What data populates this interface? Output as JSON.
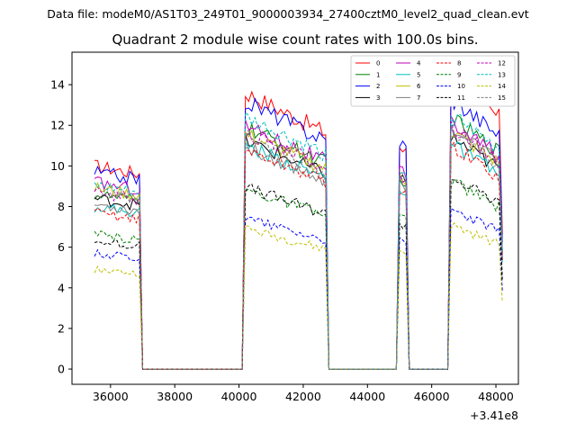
{
  "chart_data": {
    "type": "line",
    "suptitle": "Data file: modeM0/AS1T03_249T01_9000003934_27400cztM0_level2_quad_clean.evt",
    "title": "Quadrant 2 module wise count rates with 100.0s bins.",
    "xlabel": "",
    "ylabel": "",
    "x_offset_label": "+3.41e8",
    "xlim": [
      34800,
      48700
    ],
    "ylim": [
      -0.75,
      15.6
    ],
    "xticks": [
      36000,
      38000,
      40000,
      42000,
      44000,
      46000,
      48000
    ],
    "xtick_labels": [
      "36000",
      "38000",
      "40000",
      "42000",
      "44000",
      "46000",
      "48000"
    ],
    "yticks": [
      0,
      2,
      4,
      6,
      8,
      10,
      12,
      14
    ],
    "ytick_labels": [
      "0",
      "2",
      "4",
      "6",
      "8",
      "10",
      "12",
      "14"
    ],
    "legend_position": "top-right",
    "legend_columns": 4,
    "good_time_intervals": [
      {
        "start": 35500,
        "end": 36950
      },
      {
        "start": 40200,
        "end": 42750
      },
      {
        "start": 44950,
        "end": 45250
      },
      {
        "start": 46550,
        "end": 48200
      }
    ],
    "series": [
      {
        "name": "0",
        "color": "#ff0000",
        "dash": "solid",
        "levels": [
          10.0,
          12.6,
          11.0,
          13.3
        ]
      },
      {
        "name": "1",
        "color": "#008000",
        "dash": "solid",
        "levels": [
          8.6,
          11.0,
          9.2,
          11.5
        ]
      },
      {
        "name": "2",
        "color": "#0000ff",
        "dash": "solid",
        "levels": [
          9.7,
          12.2,
          11.3,
          12.4
        ]
      },
      {
        "name": "3",
        "color": "#000000",
        "dash": "solid",
        "levels": [
          8.4,
          10.4,
          9.5,
          10.6
        ]
      },
      {
        "name": "4",
        "color": "#bf00bf",
        "dash": "solid",
        "levels": [
          9.2,
          11.1,
          9.8,
          11.3
        ]
      },
      {
        "name": "5",
        "color": "#00bfbf",
        "dash": "solid",
        "levels": [
          8.0,
          10.2,
          9.0,
          10.3
        ]
      },
      {
        "name": "6",
        "color": "#bfbf00",
        "dash": "solid",
        "levels": [
          8.9,
          10.7,
          9.6,
          10.9
        ]
      },
      {
        "name": "7",
        "color": "#808080",
        "dash": "solid",
        "levels": [
          8.1,
          10.1,
          9.3,
          11.0
        ]
      },
      {
        "name": "8",
        "color": "#ff0000",
        "dash": "dashed",
        "levels": [
          7.7,
          10.0,
          8.8,
          10.2
        ]
      },
      {
        "name": "9",
        "color": "#008000",
        "dash": "dashed",
        "levels": [
          6.6,
          8.2,
          7.6,
          8.6
        ]
      },
      {
        "name": "10",
        "color": "#0000ff",
        "dash": "dashed",
        "levels": [
          5.7,
          6.9,
          6.3,
          7.3
        ]
      },
      {
        "name": "11",
        "color": "#000000",
        "dash": "dashed",
        "levels": [
          6.3,
          8.3,
          7.3,
          8.8
        ]
      },
      {
        "name": "12",
        "color": "#bf00bf",
        "dash": "dashed",
        "levels": [
          8.7,
          10.8,
          9.6,
          11.1
        ]
      },
      {
        "name": "13",
        "color": "#00bfbf",
        "dash": "dashed",
        "levels": [
          9.0,
          11.4,
          10.0,
          11.6
        ]
      },
      {
        "name": "14",
        "color": "#bfbf00",
        "dash": "dashed",
        "levels": [
          4.9,
          6.4,
          5.9,
          6.6
        ]
      },
      {
        "name": "15",
        "color": "#808080",
        "dash": "dashed",
        "levels": [
          8.6,
          10.5,
          9.7,
          10.8
        ]
      }
    ]
  }
}
